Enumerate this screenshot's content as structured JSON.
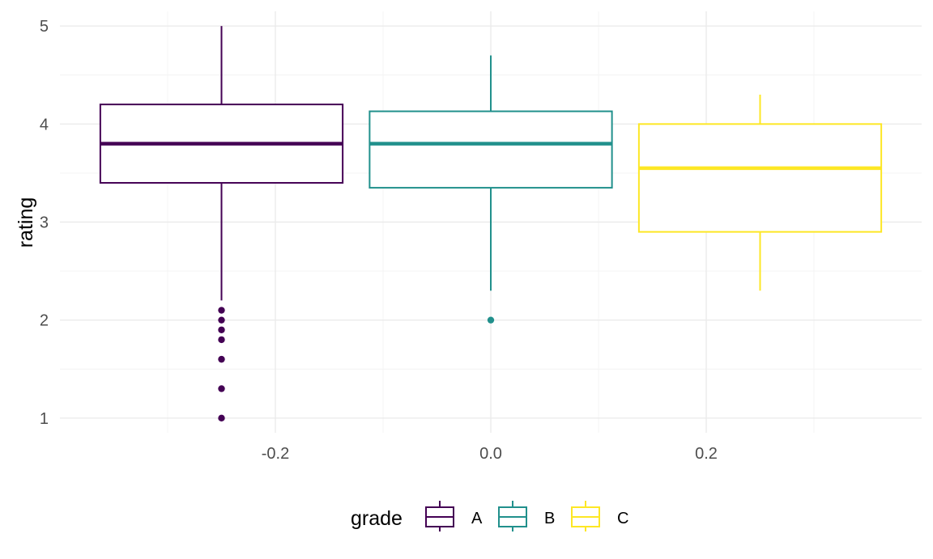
{
  "chart_data": {
    "type": "boxplot",
    "title": "",
    "xlabel": "",
    "ylabel": "rating",
    "xlim": [
      -0.4,
      0.4
    ],
    "ylim": [
      0.85,
      5.15
    ],
    "x_ticks": [
      -0.2,
      0.0,
      0.2
    ],
    "x_tick_labels": [
      "-0.2",
      "0.0",
      "0.2"
    ],
    "y_ticks": [
      1,
      2,
      3,
      4,
      5
    ],
    "y_tick_labels": [
      "1",
      "2",
      "3",
      "4",
      "5"
    ],
    "grid": true,
    "legend": {
      "title": "grade",
      "position": "bottom"
    },
    "series": [
      {
        "name": "A",
        "color": "#440154",
        "x_center": -0.25,
        "lower_whisker": 2.2,
        "q1": 3.4,
        "median": 3.8,
        "q3": 4.2,
        "upper_whisker": 5.0,
        "outliers": [
          2.1,
          2.0,
          1.9,
          1.8,
          1.6,
          1.3,
          1.0
        ]
      },
      {
        "name": "B",
        "color": "#21908C",
        "x_center": 0.0,
        "lower_whisker": 2.3,
        "q1": 3.35,
        "median": 3.8,
        "q3": 4.13,
        "upper_whisker": 4.7,
        "outliers": [
          2.0
        ]
      },
      {
        "name": "C",
        "color": "#FDE725",
        "x_center": 0.25,
        "lower_whisker": 2.3,
        "q1": 2.9,
        "median": 3.55,
        "q3": 4.0,
        "upper_whisker": 4.3,
        "outliers": []
      }
    ]
  }
}
